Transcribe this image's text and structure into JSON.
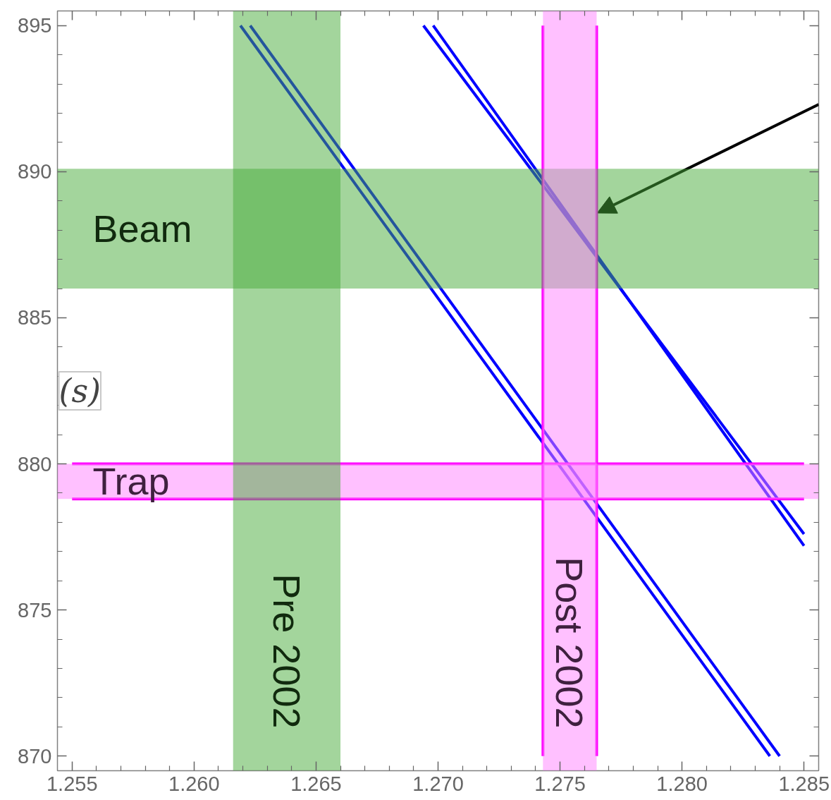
{
  "chart_data": {
    "type": "line",
    "ylabel": "(s)",
    "xlim": [
      1.2544,
      1.2856
    ],
    "ylim": [
      869.5,
      895.5
    ],
    "xticks": [
      1.255,
      {
        "value": 1.256,
        "label": null
      },
      {
        "value": 1.257,
        "label": null
      },
      {
        "value": 1.258,
        "label": null
      },
      {
        "value": 1.259,
        "label": null
      },
      {
        "value": 1.26,
        "label": "1.260"
      },
      {
        "value": 1.261,
        "label": null
      },
      {
        "value": 1.262,
        "label": null
      },
      {
        "value": 1.263,
        "label": null
      },
      {
        "value": 1.264,
        "label": null
      },
      1.265,
      {
        "value": 1.266,
        "label": null
      },
      {
        "value": 1.267,
        "label": null
      },
      {
        "value": 1.268,
        "label": null
      },
      {
        "value": 1.269,
        "label": null
      },
      {
        "value": 1.27,
        "label": "1.270"
      },
      {
        "value": 1.271,
        "label": null
      },
      {
        "value": 1.272,
        "label": null
      },
      {
        "value": 1.273,
        "label": null
      },
      {
        "value": 1.274,
        "label": null
      },
      1.275,
      {
        "value": 1.276,
        "label": null
      },
      {
        "value": 1.277,
        "label": null
      },
      {
        "value": 1.278,
        "label": null
      },
      {
        "value": 1.279,
        "label": null
      },
      {
        "value": 1.28,
        "label": "1.280"
      },
      {
        "value": 1.281,
        "label": null
      },
      {
        "value": 1.282,
        "label": null
      },
      {
        "value": 1.283,
        "label": null
      },
      {
        "value": 1.284,
        "label": null
      },
      1.285
    ],
    "yticks": [
      870,
      {
        "value": 871,
        "label": null
      },
      {
        "value": 872,
        "label": null
      },
      {
        "value": 873,
        "label": null
      },
      {
        "value": 874,
        "label": null
      },
      875,
      {
        "value": 876,
        "label": null
      },
      {
        "value": 877,
        "label": null
      },
      {
        "value": 878,
        "label": null
      },
      {
        "value": 879,
        "label": null
      },
      880,
      {
        "value": 881,
        "label": null
      },
      {
        "value": 882,
        "label": null
      },
      {
        "value": 883,
        "label": null
      },
      {
        "value": 884,
        "label": null
      },
      885,
      {
        "value": 886,
        "label": null
      },
      {
        "value": 887,
        "label": null
      },
      {
        "value": 888,
        "label": null
      },
      {
        "value": 889,
        "label": null
      },
      890,
      {
        "value": 891,
        "label": null
      },
      {
        "value": 892,
        "label": null
      },
      {
        "value": 893,
        "label": null
      },
      {
        "value": 894,
        "label": null
      },
      895
    ],
    "grid": false,
    "line_style": "solid",
    "series": [
      {
        "color": "#0000ff",
        "x": [
          1.2619,
          1.2836
        ],
        "values": [
          895,
          870
        ]
      },
      {
        "color": "#0000ff",
        "x": [
          1.2623,
          1.284
        ],
        "values": [
          895,
          870
        ]
      },
      {
        "color": "#0000ff",
        "x": [
          1.2694,
          1.285
        ],
        "values": [
          895,
          877.6
        ]
      },
      {
        "color": "#0000ff",
        "x": [
          1.2698,
          1.285
        ],
        "values": [
          895,
          877.2
        ]
      },
      {
        "color": "#ff00ff",
        "x": [
          1.255,
          1.285
        ],
        "values": [
          880,
          880
        ]
      },
      {
        "color": "#ff00ff",
        "x": [
          1.255,
          1.285
        ],
        "values": [
          878.8,
          878.8
        ]
      },
      {
        "color": "#ff00ff",
        "x": [
          1.2743,
          1.2743
        ],
        "values": [
          870,
          895
        ]
      },
      {
        "color": "#ff00ff",
        "x": [
          1.2765,
          1.2765
        ],
        "values": [
          870,
          895
        ]
      }
    ],
    "bands": [
      {
        "axis": "y",
        "from": 886,
        "to": 890.1,
        "label": "Beam",
        "color": "#47ab39"
      },
      {
        "axis": "y",
        "from": 878.8,
        "to": 880,
        "label": "Trap",
        "color": "#ff81ff"
      },
      {
        "axis": "x",
        "from": 1.2616,
        "to": 1.266,
        "label": "Pre 2002",
        "color": "#47ab39"
      },
      {
        "axis": "x",
        "from": 1.2743,
        "to": 1.2765,
        "label": "Post 2002",
        "color": "#ff81ff"
      }
    ]
  }
}
